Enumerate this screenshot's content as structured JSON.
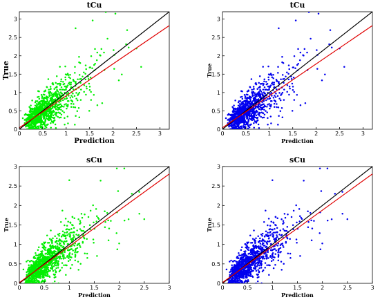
{
  "colors": {
    "identity_line": "#000000",
    "fit_line": "#e00000",
    "green_points": "#00ee00",
    "blue_points": "#0000ee",
    "axes": "#000000"
  },
  "chart_data": [
    {
      "type": "scatter",
      "title": "tCu",
      "xlabel": "Prediction",
      "ylabel": "True",
      "xlim": [
        0,
        3.2
      ],
      "ylim": [
        0,
        3.2
      ],
      "xticks": [
        "0",
        "0.5",
        "1",
        "1.5",
        "2",
        "2.5",
        "3"
      ],
      "yticks": [
        "0",
        "0.5",
        "1",
        "1.5",
        "2",
        "2.5",
        "3"
      ],
      "point_color": "green",
      "point_count": 1100,
      "point_seed": 11,
      "lines": [
        {
          "kind": "identity",
          "intercept": 0,
          "slope": 1.0
        },
        {
          "kind": "fit",
          "intercept": 0.04,
          "slope": 0.87
        }
      ],
      "notable_points": [
        [
          2.05,
          3.15
        ],
        [
          2.3,
          2.7
        ],
        [
          2.6,
          1.7
        ],
        [
          1.2,
          2.75
        ],
        [
          2.5,
          2.2
        ]
      ]
    },
    {
      "type": "scatter",
      "title": "tCu",
      "xlabel": "Prediction",
      "ylabel": "True",
      "xlim": [
        0,
        3.2
      ],
      "ylim": [
        0,
        3.2
      ],
      "xticks": [
        "0",
        "0.5",
        "1",
        "1.5",
        "2",
        "2.5",
        "3"
      ],
      "yticks": [
        "0",
        "0.5",
        "1",
        "1.5",
        "2",
        "2.5",
        "3"
      ],
      "point_color": "blue",
      "point_count": 1100,
      "point_seed": 11,
      "lines": [
        {
          "kind": "identity",
          "intercept": 0,
          "slope": 1.0
        },
        {
          "kind": "fit",
          "intercept": 0.04,
          "slope": 0.87
        }
      ],
      "notable_points": [
        [
          2.05,
          3.15
        ],
        [
          2.3,
          2.7
        ],
        [
          2.6,
          1.7
        ],
        [
          1.2,
          2.75
        ],
        [
          2.5,
          2.2
        ]
      ]
    },
    {
      "type": "scatter",
      "title": "sCu",
      "xlabel": "Prediction",
      "ylabel": "True",
      "xlim": [
        0,
        3
      ],
      "ylim": [
        0,
        3
      ],
      "xticks": [
        "0",
        "0.5",
        "1",
        "1.5",
        "2",
        "2.5",
        "3"
      ],
      "yticks": [
        "0",
        "0.5",
        "1",
        "1.5",
        "2",
        "2.5",
        "3"
      ],
      "point_color": "green",
      "point_count": 1100,
      "point_seed": 29,
      "lines": [
        {
          "kind": "identity",
          "intercept": 0,
          "slope": 1.0
        },
        {
          "kind": "fit",
          "intercept": 0.02,
          "slope": 0.93
        }
      ],
      "notable_points": [
        [
          1.95,
          2.95
        ],
        [
          2.1,
          2.95
        ],
        [
          2.25,
          2.3
        ],
        [
          2.5,
          1.65
        ],
        [
          1.0,
          2.65
        ],
        [
          2.4,
          2.35
        ]
      ]
    },
    {
      "type": "scatter",
      "title": "sCu",
      "xlabel": "Prediction",
      "ylabel": "True",
      "xlim": [
        0,
        3
      ],
      "ylim": [
        0,
        3
      ],
      "xticks": [
        "0",
        "0.5",
        "1",
        "1.5",
        "2",
        "2.5",
        "3"
      ],
      "yticks": [
        "0",
        "0.5",
        "1",
        "1.5",
        "2",
        "2.5",
        "3"
      ],
      "point_color": "blue",
      "point_count": 1100,
      "point_seed": 29,
      "lines": [
        {
          "kind": "identity",
          "intercept": 0,
          "slope": 1.0
        },
        {
          "kind": "fit",
          "intercept": 0.02,
          "slope": 0.93
        }
      ],
      "notable_points": [
        [
          1.95,
          2.95
        ],
        [
          2.1,
          2.95
        ],
        [
          2.25,
          2.3
        ],
        [
          2.5,
          1.65
        ],
        [
          1.0,
          2.65
        ],
        [
          2.4,
          2.35
        ]
      ]
    }
  ]
}
